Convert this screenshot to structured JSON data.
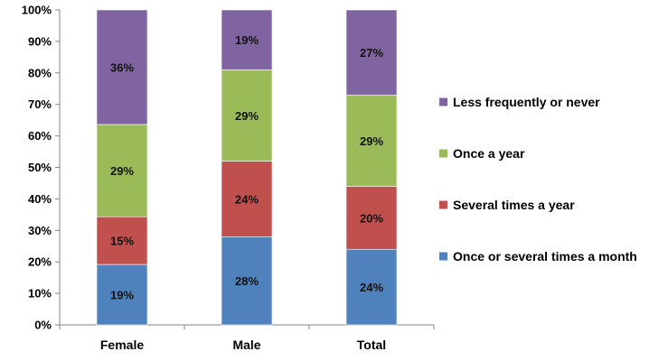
{
  "chart_data": {
    "type": "bar",
    "stacked": true,
    "categories": [
      "Female",
      "Male",
      "Total"
    ],
    "series": [
      {
        "name": "Once or several times a month",
        "values": [
          19,
          28,
          24
        ],
        "labels": [
          "19%",
          "28%",
          "24%"
        ],
        "color": "#4F81BD"
      },
      {
        "name": "Several times a year",
        "values": [
          15,
          24,
          20
        ],
        "labels": [
          "15%",
          "24%",
          "20%"
        ],
        "color": "#C0504D"
      },
      {
        "name": "Once a year",
        "values": [
          29,
          29,
          29
        ],
        "labels": [
          "29%",
          "29%",
          "29%"
        ],
        "color": "#9BBB59"
      },
      {
        "name": "Less frequently or never",
        "values": [
          36,
          19,
          27
        ],
        "labels": [
          "36%",
          "19%",
          "27%"
        ],
        "color": "#8064A2"
      }
    ],
    "ylim": [
      0,
      100
    ],
    "yticks": [
      "0%",
      "10%",
      "20%",
      "30%",
      "40%",
      "50%",
      "60%",
      "70%",
      "80%",
      "90%",
      "100%"
    ],
    "grid": false,
    "legend_position": "right",
    "legend_order": [
      3,
      2,
      1,
      0
    ]
  }
}
